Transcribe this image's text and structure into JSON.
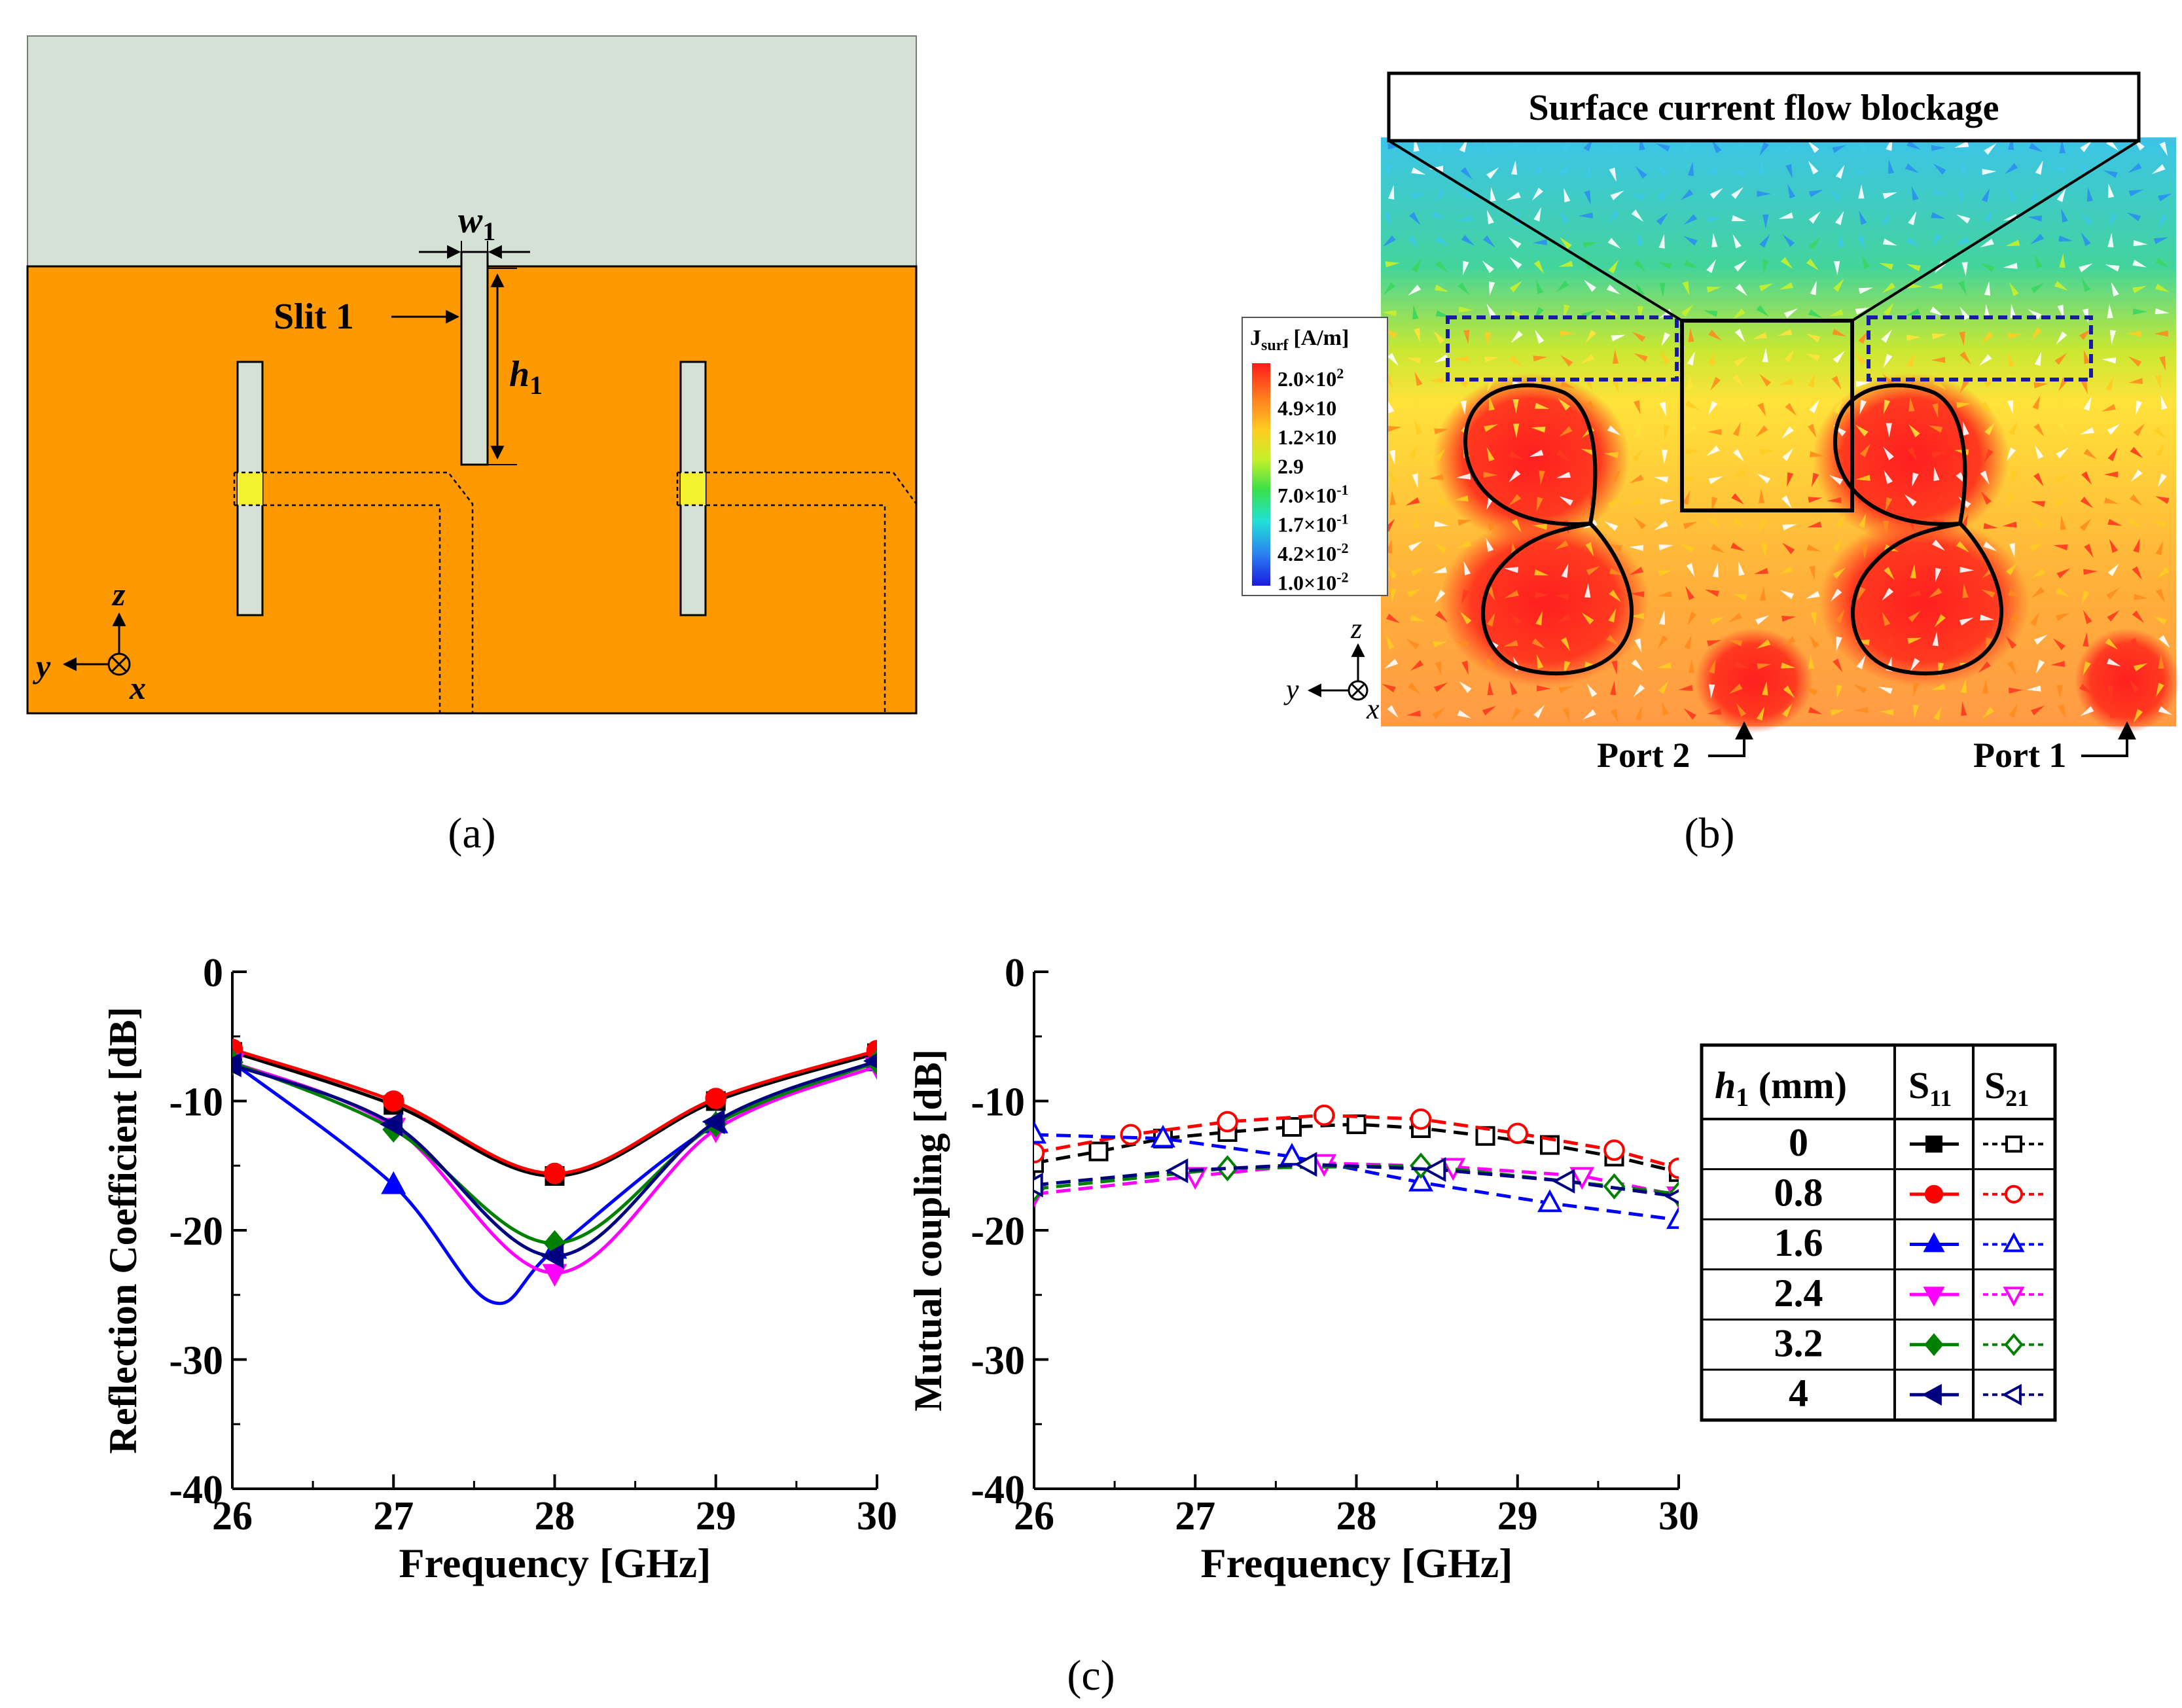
{
  "panel_a": {
    "caption": "(a)",
    "slit_label": "Slit 1",
    "w_label": "w",
    "w_sub": "1",
    "h_label": "h",
    "h_sub": "1",
    "axis_y": "y",
    "axis_z": "z",
    "axis_x": "x",
    "colors": {
      "substrate": "#d6e1d6",
      "ground": "#ff9900",
      "feed": "#f2f230"
    }
  },
  "panel_b": {
    "caption": "(b)",
    "banner": "Surface current flow blockage",
    "legend_title": "J",
    "legend_title_sub": "surf",
    "legend_unit": "[A/m]",
    "legend_ticks": [
      {
        "mant": "2.0×10",
        "exp": "2"
      },
      {
        "mant": "4.9×10",
        "exp": ""
      },
      {
        "mant": "1.2×10",
        "exp": ""
      },
      {
        "mant": "2.9",
        "exp": ""
      },
      {
        "mant": "7.0×10",
        "exp": "-1"
      },
      {
        "mant": "1.7×10",
        "exp": "-1"
      },
      {
        "mant": "4.2×10",
        "exp": "-2"
      },
      {
        "mant": "1.0×10",
        "exp": "-2"
      }
    ],
    "port2": "Port 2",
    "port1": "Port 1",
    "axis_y": "y",
    "axis_z": "z",
    "axis_x": "x"
  },
  "panel_c_caption": "(c)",
  "legend_table": {
    "h_head": "h",
    "h_head_sub": "1",
    "h_head_unit": " (mm)",
    "s11_head": "S",
    "s11_sub": "11",
    "s21_head": "S",
    "s21_sub": "21",
    "rows": [
      "0",
      "0.8",
      "1.6",
      "2.4",
      "3.2",
      "4"
    ]
  },
  "chart_data": [
    {
      "type": "line",
      "title": "",
      "xlabel": "Frequency [GHz]",
      "ylabel": "Reflection Coefficient [dB]",
      "xlim": [
        26,
        30
      ],
      "ylim": [
        -40,
        0
      ],
      "xticks": [
        "26",
        "27",
        "28",
        "29",
        "30"
      ],
      "yticks": [
        "0",
        "-10",
        "-20",
        "-30",
        "-40"
      ],
      "grid": false,
      "series": [
        {
          "name": "0",
          "color": "#000000",
          "marker": "square",
          "filled": true,
          "x": [
            26,
            27,
            28,
            29,
            30
          ],
          "values": [
            -6.2,
            -10.3,
            -15.8,
            -10.0,
            -6.3
          ]
        },
        {
          "name": "0.8",
          "color": "#ff0000",
          "marker": "circle",
          "filled": true,
          "x": [
            26,
            27,
            28,
            29,
            30
          ],
          "values": [
            -6.0,
            -10.0,
            -15.6,
            -9.8,
            -6.1
          ]
        },
        {
          "name": "1.6",
          "color": "#0000ff",
          "marker": "triangle-up",
          "filled": true,
          "x": [
            26,
            27,
            27.6,
            28,
            29,
            30
          ],
          "values": [
            -7.0,
            -16.5,
            -25.5,
            -21.5,
            -11.8,
            -7.0
          ]
        },
        {
          "name": "2.4",
          "color": "#ff00ff",
          "marker": "triangle-down",
          "filled": true,
          "x": [
            26,
            27,
            28,
            29,
            30
          ],
          "values": [
            -7.0,
            -12.0,
            -23.3,
            -12.2,
            -7.3
          ]
        },
        {
          "name": "3.2",
          "color": "#008000",
          "marker": "diamond",
          "filled": true,
          "x": [
            26,
            27,
            28,
            29,
            30
          ],
          "values": [
            -7.0,
            -12.2,
            -21.0,
            -11.8,
            -7.0
          ]
        },
        {
          "name": "4",
          "color": "#000080",
          "marker": "triangle-left",
          "filled": true,
          "x": [
            26,
            27,
            28,
            29,
            30
          ],
          "values": [
            -7.2,
            -11.8,
            -22.0,
            -11.6,
            -6.9
          ]
        }
      ]
    },
    {
      "type": "line",
      "title": "",
      "xlabel": "Frequency [GHz]",
      "ylabel": "Mutual coupling [dB]",
      "xlim": [
        26,
        30
      ],
      "ylim": [
        -40,
        0
      ],
      "xticks": [
        "26",
        "27",
        "28",
        "29",
        "30"
      ],
      "yticks": [
        "0",
        "-10",
        "-20",
        "-30",
        "-40"
      ],
      "grid": false,
      "series": [
        {
          "name": "0",
          "color": "#000000",
          "marker": "square",
          "filled": false,
          "x": [
            26,
            26.4,
            26.8,
            27.2,
            27.6,
            28.0,
            28.4,
            28.8,
            29.2,
            29.6,
            30
          ],
          "values": [
            -14.8,
            -13.9,
            -12.9,
            -12.4,
            -12.0,
            -11.8,
            -12.1,
            -12.7,
            -13.4,
            -14.3,
            -15.5
          ]
        },
        {
          "name": "0.8",
          "color": "#ff0000",
          "marker": "circle",
          "filled": false,
          "x": [
            26,
            26.6,
            27.2,
            27.8,
            28.4,
            29.0,
            29.6,
            30
          ],
          "values": [
            -14.0,
            -12.6,
            -11.6,
            -11.1,
            -11.4,
            -12.5,
            -13.8,
            -15.2
          ]
        },
        {
          "name": "1.6",
          "color": "#0000ff",
          "marker": "triangle-up",
          "filled": false,
          "x": [
            26,
            26.8,
            27.6,
            28.4,
            29.2,
            30
          ],
          "values": [
            -12.6,
            -12.9,
            -14.3,
            -16.3,
            -17.9,
            -19.2
          ]
        },
        {
          "name": "2.4",
          "color": "#ff00ff",
          "marker": "triangle-down",
          "filled": false,
          "x": [
            26,
            27.0,
            27.8,
            28.6,
            29.4,
            30
          ],
          "values": [
            -17.2,
            -15.8,
            -14.8,
            -15.1,
            -15.8,
            -17.3
          ]
        },
        {
          "name": "3.2",
          "color": "#008000",
          "marker": "diamond",
          "filled": false,
          "x": [
            26,
            27.2,
            28.4,
            29.6,
            30
          ],
          "values": [
            -16.8,
            -15.2,
            -15.0,
            -16.6,
            -17.2
          ]
        },
        {
          "name": "4",
          "color": "#000080",
          "marker": "triangle-left",
          "filled": false,
          "x": [
            26,
            26.9,
            27.7,
            28.5,
            29.3,
            30
          ],
          "values": [
            -16.5,
            -15.4,
            -14.9,
            -15.3,
            -16.2,
            -17.4
          ]
        }
      ]
    }
  ]
}
